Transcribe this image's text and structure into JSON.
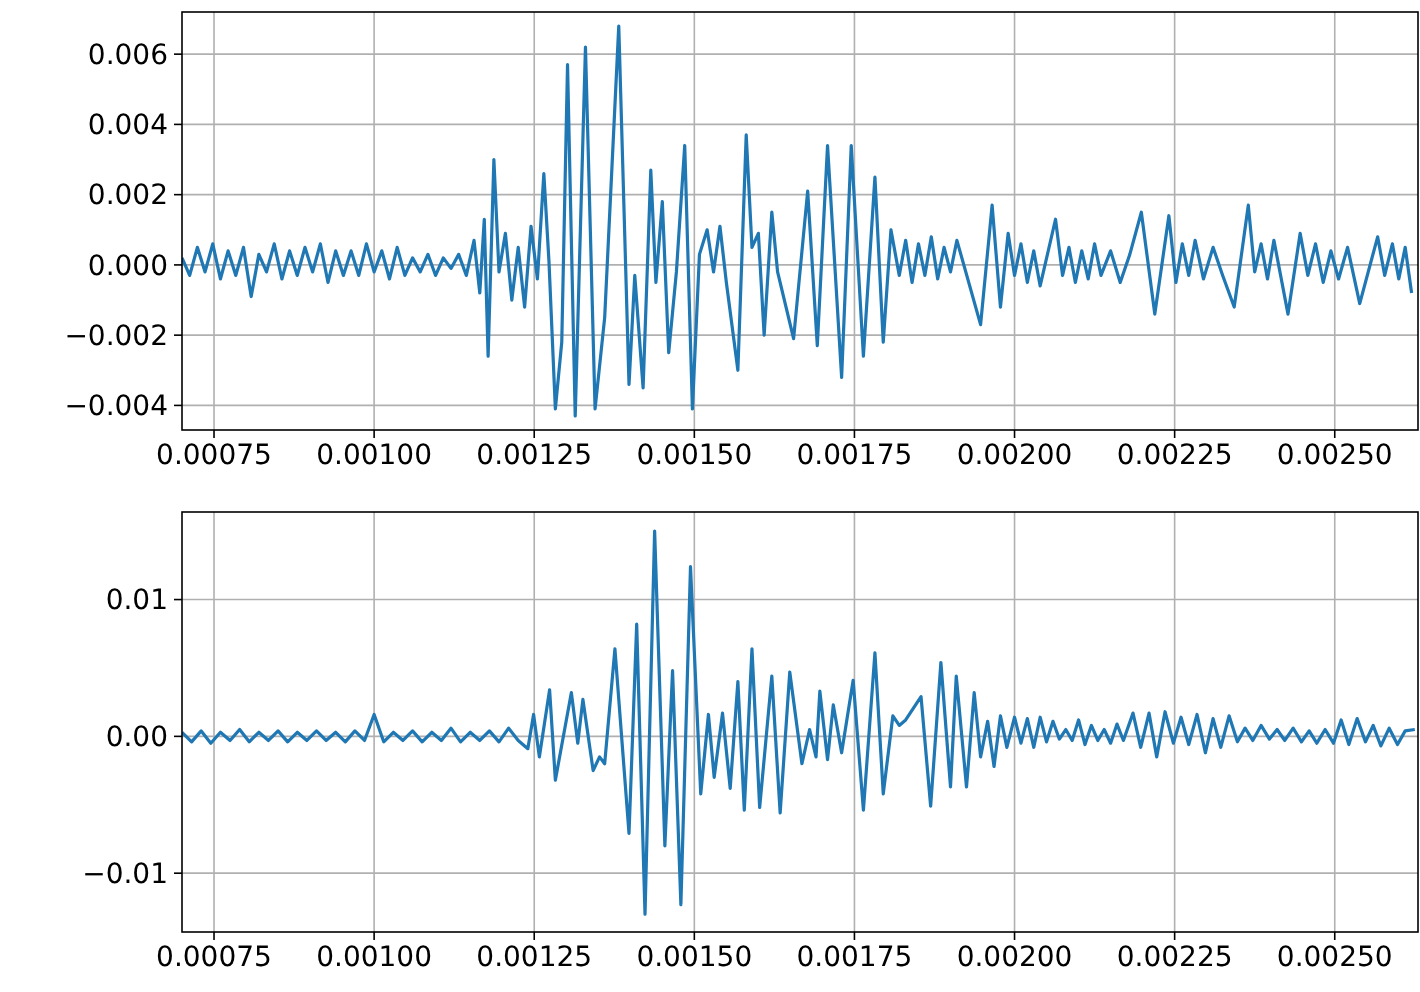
{
  "chart_data": [
    {
      "type": "line",
      "grid": true,
      "xlim": [
        0.0007,
        0.00263
      ],
      "ylim": [
        -0.0047,
        0.0072
      ],
      "xticks": [
        {
          "value": 0.00075,
          "label": "0.00075"
        },
        {
          "value": 0.001,
          "label": "0.00100"
        },
        {
          "value": 0.00125,
          "label": "0.00125"
        },
        {
          "value": 0.0015,
          "label": "0.00150"
        },
        {
          "value": 0.00175,
          "label": "0.00175"
        },
        {
          "value": 0.002,
          "label": "0.00200"
        },
        {
          "value": 0.00225,
          "label": "0.00225"
        },
        {
          "value": 0.0025,
          "label": "0.00250"
        }
      ],
      "yticks": [
        {
          "value": -0.004,
          "label": "−0.004"
        },
        {
          "value": -0.002,
          "label": "−0.002"
        },
        {
          "value": 0,
          "label": "0.000"
        },
        {
          "value": 0.002,
          "label": "0.002"
        },
        {
          "value": 0.004,
          "label": "0.004"
        },
        {
          "value": 0.006,
          "label": "0.006"
        }
      ],
      "x": [
        0.0007,
        0.000712,
        0.000724,
        0.000736,
        0.000748,
        0.00076,
        0.000772,
        0.000784,
        0.000796,
        0.000808,
        0.00082,
        0.000832,
        0.000844,
        0.000856,
        0.000868,
        0.00088,
        0.000892,
        0.000904,
        0.000916,
        0.000928,
        0.00094,
        0.000952,
        0.000964,
        0.000976,
        0.000988,
        0.001,
        0.001012,
        0.001024,
        0.001036,
        0.001048,
        0.00106,
        0.001072,
        0.001084,
        0.001096,
        0.001108,
        0.00112,
        0.001132,
        0.001144,
        0.001156,
        0.001165,
        0.001172,
        0.001178,
        0.001187,
        0.001195,
        0.001205,
        0.001215,
        0.001225,
        0.001235,
        0.001245,
        0.001255,
        0.001265,
        0.001273,
        0.001283,
        0.001293,
        0.001302,
        0.001314,
        0.00133,
        0.001345,
        0.00136,
        0.001382,
        0.001398,
        0.001407,
        0.00142,
        0.001432,
        0.00144,
        0.00145,
        0.00146,
        0.001472,
        0.001485,
        0.001497,
        0.001508,
        0.00152,
        0.00153,
        0.00154,
        0.00155,
        0.001568,
        0.001581,
        0.00159,
        0.0016,
        0.001609,
        0.001621,
        0.00163,
        0.001655,
        0.001677,
        0.001692,
        0.001708,
        0.00173,
        0.001745,
        0.001764,
        0.001782,
        0.001795,
        0.001807,
        0.00182,
        0.00183,
        0.00184,
        0.00185,
        0.00186,
        0.00187,
        0.00188,
        0.00189,
        0.0019,
        0.00191,
        0.001947,
        0.001965,
        0.001978,
        0.00199,
        0.002,
        0.00201,
        0.00202,
        0.00203,
        0.00204,
        0.002064,
        0.002075,
        0.002085,
        0.002095,
        0.002105,
        0.002115,
        0.002125,
        0.002135,
        0.00215,
        0.002165,
        0.00218,
        0.002198,
        0.002219,
        0.002241,
        0.002252,
        0.002262,
        0.002272,
        0.002282,
        0.002295,
        0.00231,
        0.002325,
        0.002343,
        0.002365,
        0.002375,
        0.002385,
        0.002395,
        0.002405,
        0.002427,
        0.002446,
        0.002458,
        0.00247,
        0.002482,
        0.002494,
        0.002506,
        0.00252,
        0.002539,
        0.002567,
        0.002578,
        0.00259,
        0.0026,
        0.00261,
        0.00262
      ],
      "series": [
        {
          "color": "#1f77b4",
          "values": [
            0.0002,
            -0.0003,
            0.0005,
            -0.0002,
            0.0006,
            -0.0004,
            0.0004,
            -0.0003,
            0.0005,
            -0.0009,
            0.0003,
            -0.0002,
            0.0006,
            -0.0004,
            0.0004,
            -0.0003,
            0.0005,
            -0.0002,
            0.0006,
            -0.0005,
            0.0004,
            -0.0003,
            0.0004,
            -0.0003,
            0.0006,
            -0.0002,
            0.0004,
            -0.0004,
            0.0005,
            -0.0003,
            0.0002,
            -0.0002,
            0.0003,
            -0.0003,
            0.0002,
            -0.0001,
            0.0003,
            -0.0003,
            0.0007,
            -0.0008,
            0.0013,
            -0.0026,
            0.003,
            -0.0002,
            0.0009,
            -0.001,
            0.0005,
            -0.0012,
            0.0011,
            -0.0004,
            0.0026,
            0.0001,
            -0.0041,
            -0.0022,
            0.0057,
            -0.0043,
            0.0062,
            -0.0041,
            -0.0015,
            0.0068,
            -0.0034,
            -0.0003,
            -0.0035,
            0.0027,
            -0.0005,
            0.0018,
            -0.0025,
            -0.0002,
            0.0034,
            -0.0041,
            0.0003,
            0.001,
            -0.0002,
            0.0011,
            -0.0005,
            -0.003,
            0.0037,
            0.0005,
            0.0009,
            -0.002,
            0.0015,
            -0.0002,
            -0.0021,
            0.0021,
            -0.0023,
            0.0034,
            -0.0032,
            0.0034,
            -0.0026,
            0.0025,
            -0.0022,
            0.001,
            -0.0003,
            0.0007,
            -0.0005,
            0.0006,
            -0.0003,
            0.0008,
            -0.0004,
            0.0005,
            -0.0002,
            0.0007,
            -0.0017,
            0.0017,
            -0.0012,
            0.0009,
            -0.0003,
            0.0006,
            -0.0005,
            0.0004,
            -0.0006,
            0.0013,
            -0.0003,
            0.0005,
            -0.0005,
            0.0004,
            -0.0004,
            0.0006,
            -0.0003,
            0.0004,
            -0.0005,
            0.0003,
            0.0015,
            -0.0014,
            0.0014,
            -0.0005,
            0.0006,
            -0.0003,
            0.0007,
            -0.0004,
            0.0005,
            -0.0003,
            -0.0012,
            0.0017,
            -0.0002,
            0.0006,
            -0.0004,
            0.0007,
            -0.0014,
            0.0009,
            -0.0003,
            0.0006,
            -0.0005,
            0.0004,
            -0.0004,
            0.0005,
            -0.0011,
            0.0008,
            -0.0003,
            0.0006,
            -0.0004,
            0.0005,
            -0.0008
          ]
        }
      ]
    },
    {
      "type": "line",
      "grid": true,
      "xlim": [
        0.0007,
        0.00263
      ],
      "ylim": [
        -0.0143,
        0.0164
      ],
      "xticks": [
        {
          "value": 0.00075,
          "label": "0.00075"
        },
        {
          "value": 0.001,
          "label": "0.00100"
        },
        {
          "value": 0.00125,
          "label": "0.00125"
        },
        {
          "value": 0.0015,
          "label": "0.00150"
        },
        {
          "value": 0.00175,
          "label": "0.00175"
        },
        {
          "value": 0.002,
          "label": "0.00200"
        },
        {
          "value": 0.00225,
          "label": "0.00225"
        },
        {
          "value": 0.0025,
          "label": "0.00250"
        }
      ],
      "yticks": [
        {
          "value": -0.01,
          "label": "−0.01"
        },
        {
          "value": 0,
          "label": "0.00"
        },
        {
          "value": 0.01,
          "label": "0.01"
        }
      ],
      "x": [
        0.0007,
        0.000715,
        0.00073,
        0.000745,
        0.00076,
        0.000775,
        0.00079,
        0.000805,
        0.00082,
        0.000835,
        0.00085,
        0.000865,
        0.00088,
        0.000895,
        0.00091,
        0.000925,
        0.00094,
        0.000955,
        0.00097,
        0.000985,
        0.001,
        0.001015,
        0.00103,
        0.001045,
        0.00106,
        0.001075,
        0.00109,
        0.001105,
        0.00112,
        0.001135,
        0.00115,
        0.001165,
        0.00118,
        0.001195,
        0.00121,
        0.001225,
        0.00124,
        0.001249,
        0.001258,
        0.001274,
        0.001283,
        0.001308,
        0.001318,
        0.001326,
        0.001342,
        0.001352,
        0.00136,
        0.001376,
        0.001398,
        0.00141,
        0.001423,
        0.001438,
        0.001454,
        0.001466,
        0.001479,
        0.001494,
        0.00151,
        0.001522,
        0.001531,
        0.001544,
        0.001556,
        0.001568,
        0.001578,
        0.00159,
        0.001602,
        0.001621,
        0.001634,
        0.001649,
        0.001668,
        0.00168,
        0.00169,
        0.001696,
        0.001708,
        0.001717,
        0.00173,
        0.001748,
        0.001764,
        0.001782,
        0.001795,
        0.00181,
        0.00182,
        0.00183,
        0.001854,
        0.001869,
        0.001885,
        0.0019,
        0.001909,
        0.001925,
        0.001937,
        0.001947,
        0.001958,
        0.001968,
        0.001978,
        0.001988,
        0.002,
        0.00201,
        0.00202,
        0.00203,
        0.00204,
        0.00205,
        0.00206,
        0.00207,
        0.00208,
        0.00209,
        0.0021,
        0.00211,
        0.00212,
        0.00213,
        0.00214,
        0.00215,
        0.00216,
        0.00217,
        0.002185,
        0.002197,
        0.00221,
        0.002222,
        0.002235,
        0.002248,
        0.00226,
        0.002272,
        0.002285,
        0.002298,
        0.00231,
        0.002322,
        0.002335,
        0.002348,
        0.00236,
        0.002372,
        0.002385,
        0.002398,
        0.00241,
        0.002422,
        0.002435,
        0.002448,
        0.00246,
        0.002472,
        0.002485,
        0.002498,
        0.00251,
        0.002522,
        0.002535,
        0.002548,
        0.00256,
        0.002572,
        0.002585,
        0.002598,
        0.00261,
        0.002625
      ],
      "series": [
        {
          "color": "#1f77b4",
          "values": [
            0.0003,
            -0.0004,
            0.0004,
            -0.0005,
            0.0003,
            -0.0003,
            0.0005,
            -0.0004,
            0.0003,
            -0.0003,
            0.0004,
            -0.0004,
            0.0003,
            -0.0003,
            0.0004,
            -0.0003,
            0.0003,
            -0.0004,
            0.0004,
            -0.0003,
            0.0016,
            -0.0004,
            0.0003,
            -0.0003,
            0.0004,
            -0.0004,
            0.0003,
            -0.0003,
            0.0006,
            -0.0004,
            0.0003,
            -0.0003,
            0.0004,
            -0.0004,
            0.0006,
            -0.0003,
            -0.0009,
            0.0016,
            -0.0015,
            0.0034,
            -0.0032,
            0.0032,
            -0.0005,
            0.0027,
            -0.0025,
            -0.0015,
            -0.002,
            0.0064,
            -0.0071,
            0.0082,
            -0.013,
            0.015,
            -0.008,
            0.0048,
            -0.0123,
            0.0124,
            -0.0042,
            0.0016,
            -0.003,
            0.0017,
            -0.0038,
            0.004,
            -0.0054,
            0.0064,
            -0.0052,
            0.0044,
            -0.0056,
            0.0047,
            -0.002,
            0.0005,
            -0.0015,
            0.0033,
            -0.0017,
            0.0023,
            -0.0012,
            0.0041,
            -0.0054,
            0.0061,
            -0.0042,
            0.0015,
            0.0008,
            0.0012,
            0.0029,
            -0.0051,
            0.0054,
            -0.0037,
            0.0044,
            -0.0037,
            0.0032,
            -0.0015,
            0.0011,
            -0.0022,
            0.0015,
            -0.0008,
            0.0014,
            -0.0005,
            0.0013,
            -0.0008,
            0.0014,
            -0.0004,
            0.0011,
            -0.0002,
            0.0005,
            -0.0003,
            0.0012,
            -0.0006,
            0.0008,
            -0.0003,
            0.0005,
            -0.0005,
            0.0009,
            -0.0003,
            0.0017,
            -0.0008,
            0.0017,
            -0.0015,
            0.0018,
            -0.0005,
            0.0014,
            -0.0006,
            0.0016,
            -0.0012,
            0.0013,
            -0.0008,
            0.0015,
            -0.0004,
            0.0006,
            -0.0003,
            0.0008,
            -0.0002,
            0.0005,
            -0.0003,
            0.0006,
            -0.0004,
            0.0004,
            -0.0005,
            0.0005,
            -0.0005,
            0.0012,
            -0.0006,
            0.0013,
            -0.0004,
            0.0008,
            -0.0007,
            0.0006,
            -0.0006,
            0.0004,
            0.0005
          ]
        }
      ]
    }
  ]
}
